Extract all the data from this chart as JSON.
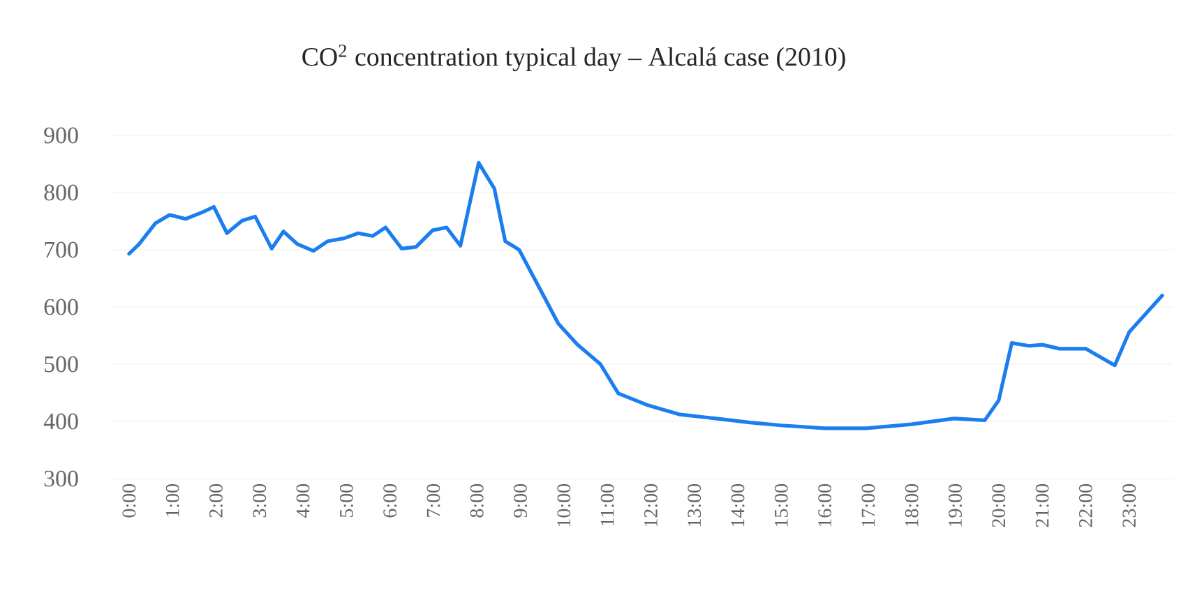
{
  "chart_data": {
    "type": "line",
    "title": "CO$^{2}$ concentration typical day – Alcalá case (2010)",
    "x": [
      0,
      0.23,
      0.6,
      0.93,
      1.3,
      1.7,
      1.95,
      2.25,
      2.6,
      2.9,
      3.28,
      3.55,
      3.87,
      4.24,
      4.57,
      4.94,
      5.27,
      5.6,
      5.9,
      6.27,
      6.6,
      6.98,
      7.3,
      7.62,
      8.04,
      8.4,
      8.65,
      8.97,
      9.55,
      9.87,
      10.3,
      10.84,
      11.25,
      11.9,
      12.67,
      13.5,
      14.28,
      15.0,
      16.0,
      16.95,
      18.0,
      18.97,
      19.68,
      20.0,
      20.3,
      20.7,
      21.0,
      21.4,
      22.0,
      22.67,
      23.0,
      23.76
    ],
    "series": [
      {
        "color": "#1a7ef0",
        "values": [
          693,
          710,
          746,
          761,
          754,
          766,
          775,
          729,
          751,
          758,
          702,
          732,
          710,
          698,
          715,
          720,
          729,
          724,
          739,
          702,
          705,
          734,
          739,
          707,
          852,
          807,
          715,
          700,
          617,
          571,
          535,
          500,
          449,
          429,
          412,
          405,
          398,
          393,
          388,
          388,
          395,
          405,
          402,
          437,
          537,
          532,
          534,
          527,
          527,
          498,
          556,
          620
        ]
      }
    ],
    "xlim": [
      -0.4,
      24
    ],
    "xticks": [
      {
        "value": 0,
        "label": "0:00"
      },
      {
        "value": 1,
        "label": "1:00"
      },
      {
        "value": 2,
        "label": "2:00"
      },
      {
        "value": 3,
        "label": "3:00"
      },
      {
        "value": 4,
        "label": "4:00"
      },
      {
        "value": 5,
        "label": "5:00"
      },
      {
        "value": 6,
        "label": "6:00"
      },
      {
        "value": 7,
        "label": "7:00"
      },
      {
        "value": 8,
        "label": "8:00"
      },
      {
        "value": 9,
        "label": "9:00"
      },
      {
        "value": 10,
        "label": "10:00"
      },
      {
        "value": 11,
        "label": "11:00"
      },
      {
        "value": 12,
        "label": "12:00"
      },
      {
        "value": 13,
        "label": "13:00"
      },
      {
        "value": 14,
        "label": "14:00"
      },
      {
        "value": 15,
        "label": "15:00"
      },
      {
        "value": 16,
        "label": "16:00"
      },
      {
        "value": 17,
        "label": "17:00"
      },
      {
        "value": 18,
        "label": "18:00"
      },
      {
        "value": 19,
        "label": "19:00"
      },
      {
        "value": 20,
        "label": "20:00"
      },
      {
        "value": 21,
        "label": "21:00"
      },
      {
        "value": 22,
        "label": "22:00"
      },
      {
        "value": 23,
        "label": "23:00"
      }
    ],
    "ylim": [
      300,
      900
    ],
    "yticks": [
      300,
      400,
      500,
      600,
      700,
      800,
      900
    ],
    "grid": "y",
    "marker": "none",
    "line_style": "solid"
  }
}
